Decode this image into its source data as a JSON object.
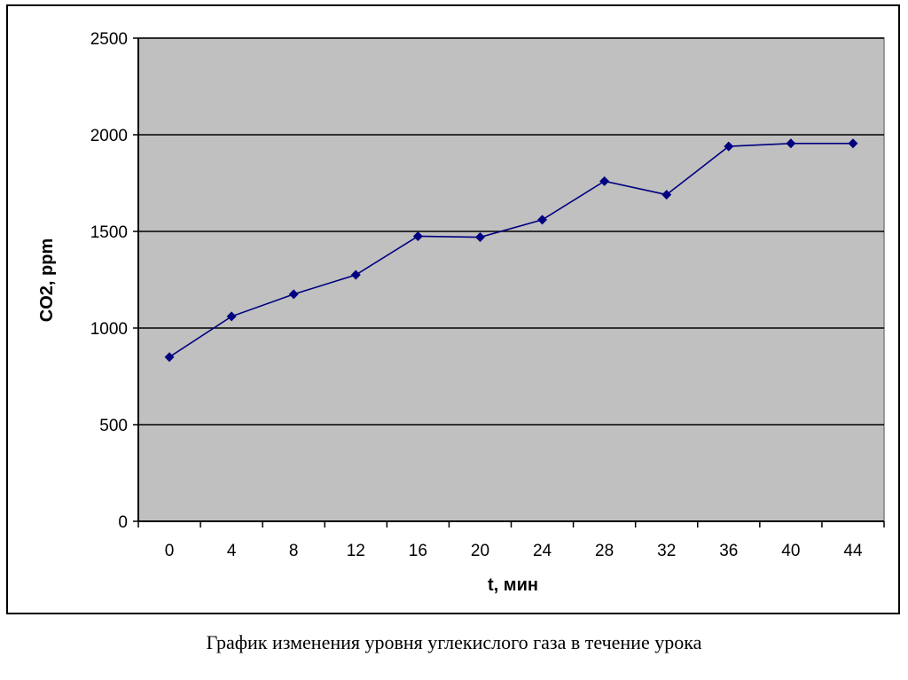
{
  "chart_data": {
    "type": "line",
    "x": [
      "0",
      "4",
      "8",
      "12",
      "16",
      "20",
      "24",
      "28",
      "32",
      "36",
      "40",
      "44"
    ],
    "series": [
      {
        "values": [
          850,
          1060,
          1175,
          1275,
          1475,
          1470,
          1560,
          1760,
          1690,
          1940,
          1955,
          1955
        ]
      }
    ],
    "xlabel": "t, мин",
    "ylabel": "CO2, ppm",
    "ylim": [
      0,
      2500
    ],
    "yticks": [
      "0",
      "500",
      "1000",
      "1500",
      "2000",
      "2500"
    ],
    "grid": true,
    "legend": "none",
    "colors": {
      "plot_background": "#c0c0c0",
      "series_line": "#000080",
      "marker": "#000080",
      "grid": "#000000"
    }
  },
  "caption": "График изменения уровня углекислого газа в течение урока"
}
